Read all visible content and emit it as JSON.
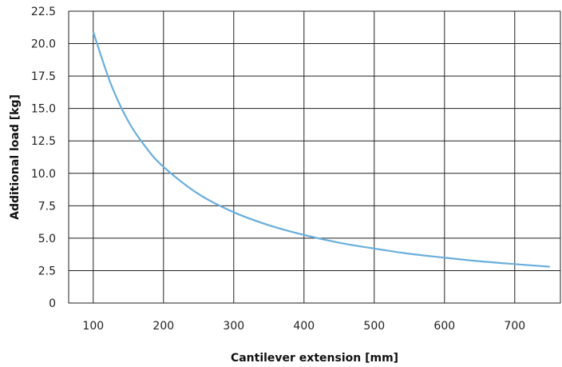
{
  "chart_data": {
    "type": "line",
    "title": "",
    "xlabel": "Cantilever extension [mm]",
    "ylabel": "Additional load [kg]",
    "xlim": [
      65,
      765
    ],
    "ylim": [
      0,
      22.5
    ],
    "x_ticks": [
      100,
      200,
      300,
      400,
      500,
      600,
      700
    ],
    "x_tick_labels": [
      "100",
      "200",
      "300",
      "400",
      "500",
      "600",
      "700"
    ],
    "y_ticks": [
      0,
      2.5,
      5.0,
      7.5,
      10.0,
      12.5,
      15.0,
      17.5,
      20.0,
      22.5
    ],
    "y_tick_labels": [
      "0",
      "2.5",
      "5.0",
      "7.5",
      "10.0",
      "12.5",
      "15.0",
      "17.5",
      "20.0",
      "22.5"
    ],
    "grid": true,
    "legend": "none",
    "series": [
      {
        "color": "#6aaedc",
        "x": [
          100,
          125,
          150,
          175,
          200,
          250,
          300,
          350,
          400,
          450,
          500,
          550,
          600,
          650,
          700,
          750
        ],
        "y": [
          20.9,
          16.9,
          14.0,
          12.0,
          10.5,
          8.4,
          7.0,
          6.0,
          5.25,
          4.65,
          4.2,
          3.8,
          3.5,
          3.22,
          3.0,
          2.8
        ]
      }
    ]
  }
}
